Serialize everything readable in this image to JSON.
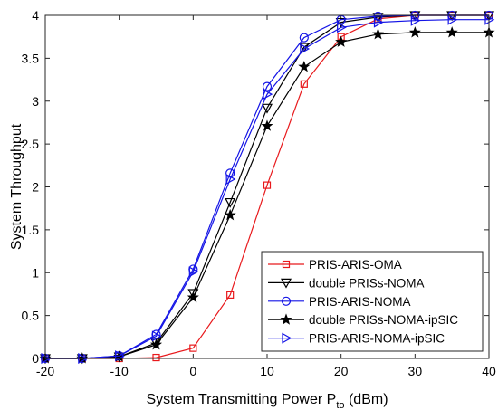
{
  "chart_data": {
    "type": "line",
    "xlabel": "System Transmitting Power P",
    "xlabel_sub": "to",
    "xlabel_unit": " (dBm)",
    "ylabel": "System Throughput",
    "xlim": [
      -20,
      40
    ],
    "ylim": [
      0,
      4
    ],
    "x_ticks": [
      -20,
      -10,
      0,
      10,
      20,
      30,
      40
    ],
    "y_ticks": [
      0,
      0.5,
      1,
      1.5,
      2,
      2.5,
      3,
      3.5,
      4
    ],
    "x_tick_labels": [
      "-20",
      "-10",
      "0",
      "10",
      "20",
      "30",
      "40"
    ],
    "y_tick_labels": [
      "0",
      "0.5",
      "1",
      "1.5",
      "2",
      "2.5",
      "3",
      "3.5",
      "4"
    ],
    "grid": false,
    "legend_position": "bottom-right",
    "x": [
      -20,
      -15,
      -10,
      -5,
      0,
      5,
      10,
      15,
      20,
      25,
      30,
      35,
      40
    ],
    "series": [
      {
        "name": "PRIS-ARIS-OMA",
        "color": "#e8191c",
        "marker": "square",
        "values": [
          0,
          0,
          0,
          0.01,
          0.12,
          0.74,
          2.02,
          3.2,
          3.75,
          3.96,
          4.0,
          4.0,
          4.0
        ]
      },
      {
        "name": "double PRISs-NOMA",
        "color": "#000000",
        "marker": "triangle-down",
        "values": [
          0,
          0,
          0.02,
          0.18,
          0.76,
          1.82,
          2.92,
          3.63,
          3.92,
          3.98,
          4.0,
          4.0,
          4.0
        ]
      },
      {
        "name": "PRIS-ARIS-NOMA",
        "color": "#1414e6",
        "marker": "circle",
        "values": [
          0,
          0,
          0.03,
          0.28,
          1.04,
          2.16,
          3.17,
          3.74,
          3.95,
          3.99,
          4.0,
          4.0,
          4.0
        ]
      },
      {
        "name": "double PRISs-NOMA-ipSIC",
        "color": "#000000",
        "marker": "star",
        "values": [
          0,
          0,
          0.02,
          0.16,
          0.71,
          1.67,
          2.71,
          3.4,
          3.69,
          3.78,
          3.8,
          3.8,
          3.8
        ]
      },
      {
        "name": "PRIS-ARIS-NOMA-ipSIC",
        "color": "#1414e6",
        "marker": "triangle-right",
        "values": [
          0,
          0,
          0.03,
          0.26,
          1.01,
          2.09,
          3.08,
          3.61,
          3.86,
          3.92,
          3.94,
          3.95,
          3.95
        ]
      }
    ]
  }
}
